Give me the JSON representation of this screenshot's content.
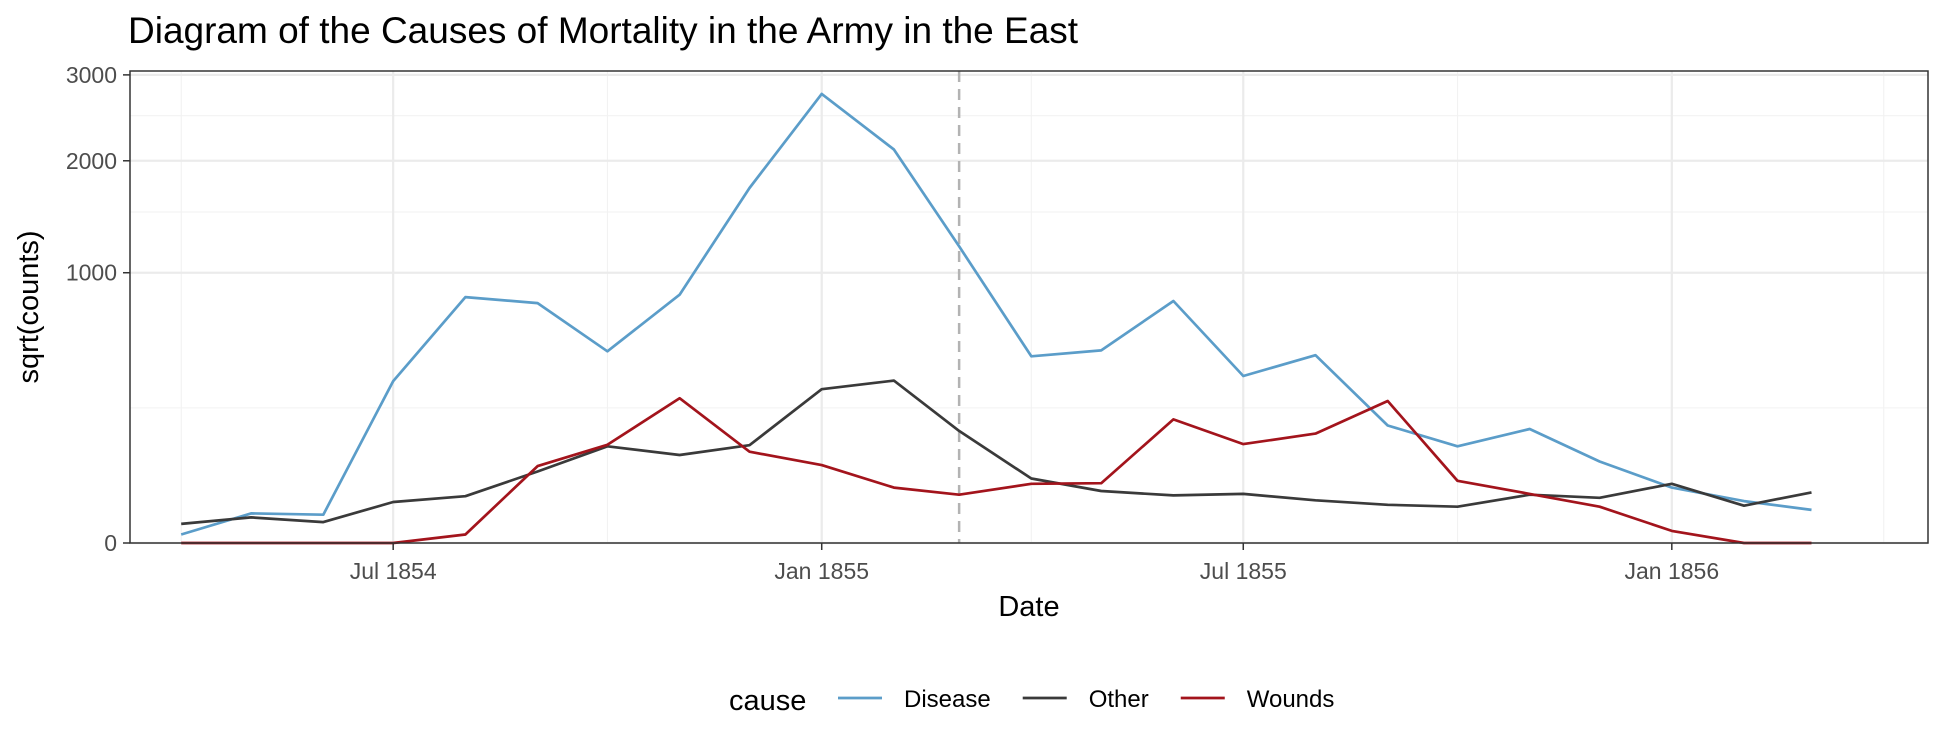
{
  "chart_data": {
    "type": "line",
    "title": "Diagram of the Causes of Mortality in the Army in the East",
    "xlabel": "Date",
    "ylabel": "sqrt(counts)",
    "y_scale": "sqrt",
    "xlim": [
      "1854-03-10",
      "1856-04-20"
    ],
    "ylim": [
      0,
      3050
    ],
    "x_ticks": [
      {
        "date": "1854-07-01",
        "label": "Jul 1854"
      },
      {
        "date": "1855-01-01",
        "label": "Jan 1855"
      },
      {
        "date": "1855-07-01",
        "label": "Jul 1855"
      },
      {
        "date": "1856-01-01",
        "label": "Jan 1856"
      }
    ],
    "x_minor_ticks": [
      "1854-04-01",
      "1854-10-01",
      "1855-04-01",
      "1855-10-01",
      "1856-04-01"
    ],
    "y_ticks": [
      0,
      1000,
      2000,
      3000
    ],
    "y_minor_ticks": [
      250,
      1500,
      2500
    ],
    "reference_line": {
      "date": "1855-03-01",
      "style": "dashed",
      "color": "#b3b3b3"
    },
    "grid": true,
    "legend": {
      "position": "bottom",
      "title": "cause"
    },
    "x": [
      "1854-04-01",
      "1854-05-01",
      "1854-06-01",
      "1854-07-01",
      "1854-08-01",
      "1854-09-01",
      "1854-10-01",
      "1854-11-01",
      "1854-12-01",
      "1855-01-01",
      "1855-02-01",
      "1855-03-01",
      "1855-04-01",
      "1855-05-01",
      "1855-06-01",
      "1855-07-01",
      "1855-08-01",
      "1855-09-01",
      "1855-10-01",
      "1855-11-01",
      "1855-12-01",
      "1856-01-01",
      "1856-02-01",
      "1856-03-01"
    ],
    "series": [
      {
        "name": "Disease",
        "color": "#5b9dc9",
        "values": [
          1,
          12,
          11,
          359,
          828,
          788,
          503,
          844,
          1725,
          2761,
          2120,
          1205,
          477,
          508,
          802,
          382,
          483,
          189,
          128,
          178,
          91,
          42,
          24,
          15
        ]
      },
      {
        "name": "Other",
        "color": "#3a3a3a",
        "values": [
          5,
          9,
          6,
          23,
          30,
          70,
          128,
          106,
          131,
          324,
          361,
          172,
          57,
          37,
          31,
          33,
          25,
          20,
          18,
          32,
          28,
          48,
          19,
          35
        ]
      },
      {
        "name": "Wounds",
        "color": "#a3141c",
        "values": [
          0,
          0,
          0,
          0,
          1,
          81,
          132,
          287,
          114,
          83,
          42,
          32,
          48,
          49,
          209,
          134,
          164,
          276,
          53,
          33,
          18,
          2,
          0,
          0
        ]
      }
    ]
  }
}
